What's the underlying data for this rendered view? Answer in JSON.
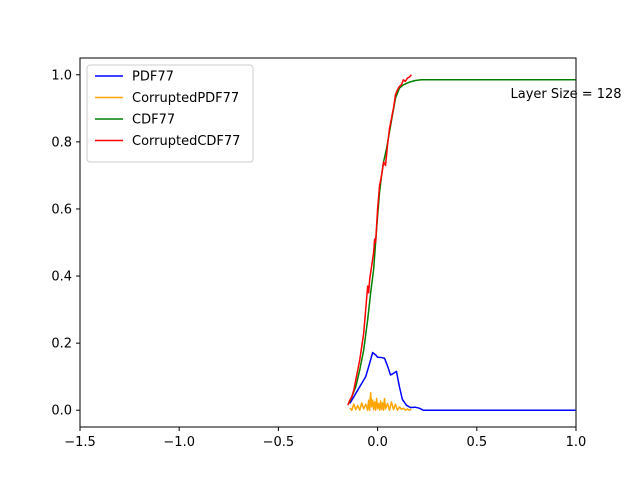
{
  "chart_data": {
    "type": "line",
    "title": "",
    "xlabel": "",
    "ylabel": "",
    "xlim": [
      -1.5,
      1.0
    ],
    "ylim": [
      -0.05,
      1.05
    ],
    "xticks": [
      -1.5,
      -1.0,
      -0.5,
      0.0,
      0.5,
      1.0
    ],
    "xtick_labels": [
      "−1.5",
      "−1.0",
      "−0.5",
      "0.0",
      "0.5",
      "1.0"
    ],
    "yticks": [
      0.0,
      0.2,
      0.4,
      0.6,
      0.8,
      1.0
    ],
    "ytick_labels": [
      "0.0",
      "0.2",
      "0.4",
      "0.6",
      "0.8",
      "1.0"
    ],
    "grid": false,
    "legend_position": "top-left",
    "annotation": {
      "text": "Layer Size = 128",
      "x": 0.67,
      "y": 0.945
    },
    "series": [
      {
        "name": "PDF77",
        "color": "#0000ff",
        "points": [
          [
            -0.14,
            0.02
          ],
          [
            -0.12,
            0.04
          ],
          [
            -0.09,
            0.07
          ],
          [
            -0.06,
            0.1
          ],
          [
            -0.04,
            0.14
          ],
          [
            -0.025,
            0.172
          ],
          [
            -0.01,
            0.165
          ],
          [
            0.0,
            0.158
          ],
          [
            0.02,
            0.157
          ],
          [
            0.035,
            0.155
          ],
          [
            0.05,
            0.132
          ],
          [
            0.065,
            0.105
          ],
          [
            0.08,
            0.11
          ],
          [
            0.095,
            0.116
          ],
          [
            0.11,
            0.07
          ],
          [
            0.125,
            0.032
          ],
          [
            0.145,
            0.015
          ],
          [
            0.165,
            0.008
          ],
          [
            0.19,
            0.009
          ],
          [
            0.21,
            0.006
          ],
          [
            0.23,
            0.0
          ],
          [
            0.3,
            0.0
          ],
          [
            0.5,
            0.0
          ],
          [
            0.7,
            0.0
          ],
          [
            0.9,
            0.0
          ],
          [
            1.0,
            0.0
          ]
        ]
      },
      {
        "name": "CorruptedPDF77",
        "color": "#ffa500",
        "points": [
          [
            -0.14,
            0.006
          ],
          [
            -0.13,
            0.0
          ],
          [
            -0.12,
            0.018
          ],
          [
            -0.11,
            0.002
          ],
          [
            -0.1,
            0.014
          ],
          [
            -0.09,
            0.0
          ],
          [
            -0.08,
            0.022
          ],
          [
            -0.07,
            0.004
          ],
          [
            -0.06,
            0.018
          ],
          [
            -0.05,
            0.0
          ],
          [
            -0.045,
            0.03
          ],
          [
            -0.04,
            0.0
          ],
          [
            -0.035,
            0.052
          ],
          [
            -0.03,
            0.01
          ],
          [
            -0.025,
            0.03
          ],
          [
            -0.02,
            0.002
          ],
          [
            -0.015,
            0.025
          ],
          [
            -0.01,
            0.0
          ],
          [
            -0.005,
            0.035
          ],
          [
            0.0,
            0.005
          ],
          [
            0.005,
            0.02
          ],
          [
            0.01,
            0.0
          ],
          [
            0.015,
            0.028
          ],
          [
            0.02,
            0.002
          ],
          [
            0.025,
            0.022
          ],
          [
            0.03,
            0.0
          ],
          [
            0.035,
            0.035
          ],
          [
            0.04,
            0.004
          ],
          [
            0.05,
            0.02
          ],
          [
            0.06,
            0.0
          ],
          [
            0.07,
            0.025
          ],
          [
            0.08,
            0.002
          ],
          [
            0.09,
            0.018
          ],
          [
            0.1,
            0.0
          ],
          [
            0.11,
            0.01
          ],
          [
            0.12,
            0.003
          ],
          [
            0.13,
            0.006
          ],
          [
            0.14,
            0.0
          ],
          [
            0.15,
            0.004
          ],
          [
            0.16,
            0.0
          ],
          [
            0.17,
            0.003
          ]
        ]
      },
      {
        "name": "CDF77",
        "color": "#008000",
        "points": [
          [
            -0.145,
            0.02
          ],
          [
            -0.13,
            0.04
          ],
          [
            -0.11,
            0.07
          ],
          [
            -0.09,
            0.12
          ],
          [
            -0.07,
            0.18
          ],
          [
            -0.05,
            0.27
          ],
          [
            -0.035,
            0.35
          ],
          [
            -0.02,
            0.42
          ],
          [
            -0.01,
            0.5
          ],
          [
            0.0,
            0.58
          ],
          [
            0.01,
            0.65
          ],
          [
            0.02,
            0.7
          ],
          [
            0.03,
            0.74
          ],
          [
            0.045,
            0.78
          ],
          [
            0.06,
            0.83
          ],
          [
            0.075,
            0.88
          ],
          [
            0.09,
            0.93
          ],
          [
            0.11,
            0.96
          ],
          [
            0.13,
            0.97
          ],
          [
            0.16,
            0.978
          ],
          [
            0.19,
            0.983
          ],
          [
            0.22,
            0.985
          ],
          [
            0.3,
            0.985
          ],
          [
            0.5,
            0.985
          ],
          [
            0.7,
            0.985
          ],
          [
            0.9,
            0.985
          ],
          [
            1.0,
            0.985
          ]
        ]
      },
      {
        "name": "CorruptedCDF77",
        "color": "#ff0000",
        "points": [
          [
            -0.15,
            0.015
          ],
          [
            -0.14,
            0.03
          ],
          [
            -0.13,
            0.04
          ],
          [
            -0.12,
            0.06
          ],
          [
            -0.11,
            0.09
          ],
          [
            -0.1,
            0.12
          ],
          [
            -0.09,
            0.15
          ],
          [
            -0.08,
            0.19
          ],
          [
            -0.07,
            0.23
          ],
          [
            -0.06,
            0.3
          ],
          [
            -0.05,
            0.37
          ],
          [
            -0.045,
            0.35
          ],
          [
            -0.04,
            0.39
          ],
          [
            -0.03,
            0.43
          ],
          [
            -0.02,
            0.47
          ],
          [
            -0.015,
            0.51
          ],
          [
            -0.01,
            0.5
          ],
          [
            0.0,
            0.6
          ],
          [
            0.01,
            0.67
          ],
          [
            0.02,
            0.7
          ],
          [
            0.03,
            0.74
          ],
          [
            0.04,
            0.73
          ],
          [
            0.05,
            0.79
          ],
          [
            0.06,
            0.84
          ],
          [
            0.07,
            0.87
          ],
          [
            0.08,
            0.9
          ],
          [
            0.09,
            0.94
          ],
          [
            0.1,
            0.955
          ],
          [
            0.11,
            0.965
          ],
          [
            0.12,
            0.97
          ],
          [
            0.13,
            0.985
          ],
          [
            0.14,
            0.98
          ],
          [
            0.15,
            0.99
          ],
          [
            0.16,
            0.993
          ],
          [
            0.17,
            1.0
          ]
        ]
      }
    ]
  }
}
